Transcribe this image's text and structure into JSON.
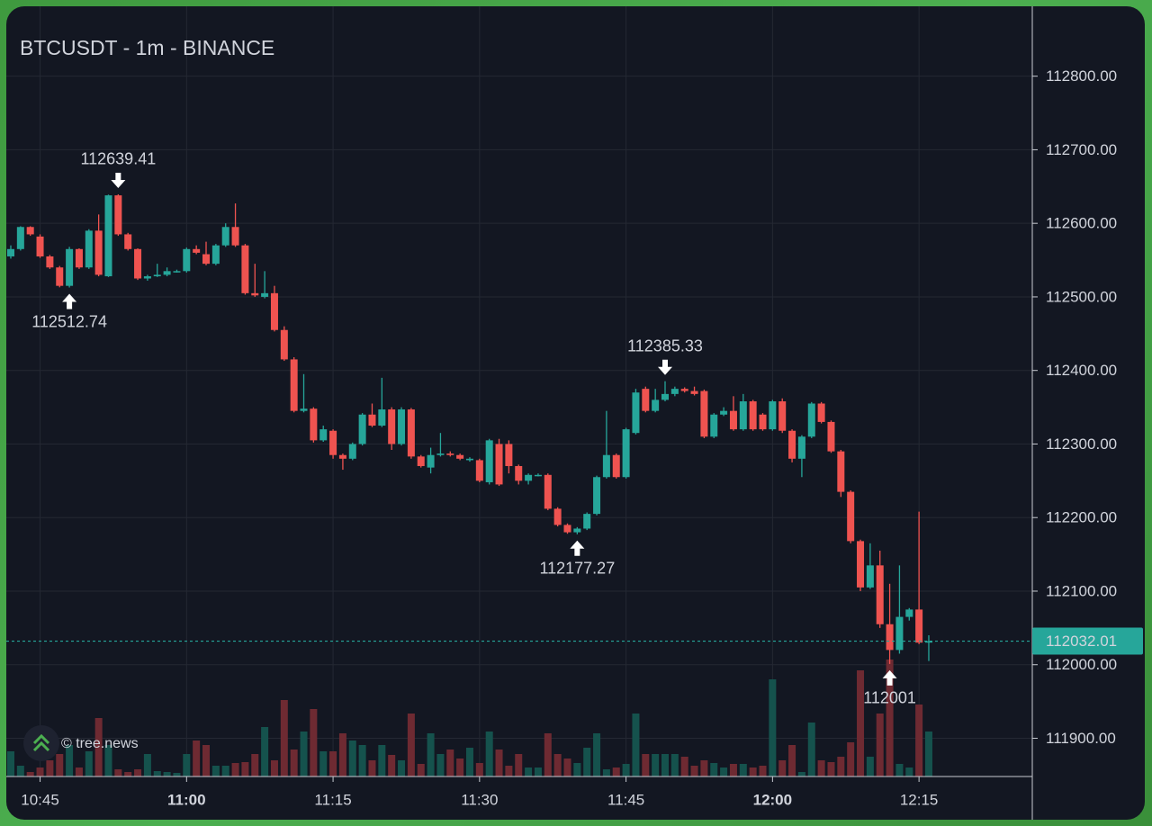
{
  "chart_data": {
    "type": "candlestick",
    "title": "BTCUSDT - 1m - BINANCE",
    "watermark": "© tree.news",
    "up_color": "#26a69a",
    "down_color": "#ef5350",
    "volume_up_color": "#15524d",
    "volume_down_color": "#6e2a32",
    "open": [
      112555,
      112565,
      112595,
      112582,
      112555,
      112540,
      112515,
      112565,
      112540,
      112590,
      112528,
      112638,
      112585,
      112565,
      112525,
      112528,
      112530,
      112535,
      112535,
      112565,
      112558,
      112545,
      112570,
      112595,
      112570,
      112505,
      112500,
      112505,
      112455,
      112415,
      112345,
      112348,
      112305,
      112318,
      112285,
      112280,
      112300,
      112340,
      112325,
      112347,
      112300,
      112347,
      112283,
      112268,
      112285,
      112287,
      112285,
      112278,
      112278,
      112248,
      112300,
      112300,
      112270,
      112250,
      112258,
      112258,
      112212,
      112190,
      112180,
      112185,
      112205,
      112255,
      112285,
      112255,
      112315,
      112375,
      112345,
      112360,
      112368,
      112375,
      112372,
      112372,
      112310,
      112340,
      112345,
      112320,
      112358,
      112340,
      112320,
      112358,
      112318,
      112280,
      112310,
      112355,
      112330,
      112290,
      112235,
      112168,
      112105,
      112135,
      112055,
      112020,
      112065,
      112075,
      112030
    ],
    "high": [
      112570,
      112596,
      112596,
      112585,
      112557,
      112542,
      112568,
      112566,
      112592,
      112612,
      112639,
      112639.41,
      112587,
      112566,
      112530,
      112545,
      112540,
      112537,
      112567,
      112570,
      112575,
      112572,
      112600,
      112627,
      112572,
      112545,
      112535,
      112515,
      112460,
      112418,
      112395,
      112350,
      112325,
      112320,
      112287,
      112302,
      112342,
      112355,
      112390,
      112350,
      112350,
      112349,
      112285,
      112295,
      112315,
      112290,
      112287,
      112282,
      112280,
      112307,
      112307,
      112305,
      112272,
      112260,
      112260,
      112260,
      112214,
      112192,
      112187,
      112207,
      112257,
      112345,
      112287,
      112322,
      112375,
      112378,
      112375,
      112385.33,
      112378,
      112377,
      112378,
      112374,
      112342,
      112350,
      112365,
      112368,
      112360,
      112342,
      112360,
      112362,
      112320,
      112312,
      112357,
      112357,
      112332,
      112292,
      112237,
      112170,
      112165,
      112155,
      112110,
      112135,
      112077,
      112208,
      112040
    ],
    "low": [
      112552,
      112563,
      112583,
      112553,
      112538,
      112513,
      112512.74,
      112538,
      112538,
      112528,
      112527,
      112583,
      112563,
      112523,
      112522,
      112527,
      112528,
      112533,
      112533,
      112558,
      112543,
      112543,
      112568,
      112568,
      112503,
      112500,
      112498,
      112453,
      112413,
      112343,
      112343,
      112302,
      112303,
      112280,
      112265,
      112278,
      112298,
      112323,
      112323,
      112292,
      112298,
      112280,
      112268,
      112260,
      112283,
      112283,
      112278,
      112276,
      112248,
      112245,
      112243,
      112260,
      112245,
      112245,
      112256,
      112210,
      112188,
      112178,
      112177.27,
      112183,
      112203,
      112253,
      112253,
      112253,
      112313,
      112343,
      112343,
      112358,
      112365,
      112370,
      112366,
      112308,
      112308,
      112338,
      112318,
      112318,
      112318,
      112318,
      112318,
      112315,
      112275,
      112255,
      112308,
      112328,
      112288,
      112228,
      112165,
      112100,
      112103,
      112050,
      112001,
      112015,
      112060,
      112028,
      112005
    ],
    "close": [
      112565,
      112595,
      112585,
      112555,
      112540,
      112515,
      112565,
      112540,
      112590,
      112530,
      112638,
      112585,
      112565,
      112525,
      112528,
      112530,
      112535,
      112535,
      112565,
      112560,
      112545,
      112570,
      112595,
      112570,
      112505,
      112502,
      112505,
      112455,
      112415,
      112345,
      112348,
      112305,
      112320,
      112285,
      112280,
      112300,
      112340,
      112325,
      112347,
      112300,
      112347,
      112283,
      112270,
      112285,
      112287,
      112285,
      112280,
      112280,
      112250,
      112305,
      112245,
      112270,
      112250,
      112258,
      112258,
      112212,
      112190,
      112180,
      112185,
      112205,
      112255,
      112285,
      112255,
      112320,
      112370,
      112345,
      112360,
      112368,
      112375,
      112372,
      112368,
      112310,
      112340,
      112345,
      112320,
      112358,
      112320,
      112320,
      112358,
      112318,
      112280,
      112310,
      112355,
      112330,
      112290,
      112235,
      112168,
      112105,
      112135,
      112055,
      112020,
      112065,
      112075,
      112030,
      112032.01
    ],
    "volume": [
      28,
      12,
      5,
      10,
      18,
      25,
      35,
      10,
      28,
      65,
      35,
      8,
      5,
      8,
      25,
      6,
      5,
      4,
      25,
      40,
      35,
      12,
      12,
      15,
      16,
      25,
      55,
      18,
      85,
      30,
      50,
      75,
      28,
      28,
      48,
      40,
      35,
      18,
      35,
      24,
      18,
      70,
      14,
      48,
      25,
      30,
      20,
      32,
      15,
      50,
      30,
      12,
      25,
      10,
      10,
      48,
      25,
      20,
      15,
      32,
      48,
      8,
      10,
      14,
      70,
      25,
      25,
      25,
      25,
      22,
      12,
      18,
      15,
      10,
      14,
      14,
      10,
      12,
      108,
      18,
      35,
      5,
      60,
      18,
      16,
      22,
      38,
      118,
      22,
      70,
      130,
      14,
      10,
      80,
      50
    ],
    "markers": [
      {
        "index": 11,
        "at": "high"
      },
      {
        "index": 6,
        "at": "low"
      },
      {
        "index": 67,
        "at": "high"
      },
      {
        "index": 58,
        "at": "low"
      },
      {
        "index": 90,
        "at": "low"
      }
    ],
    "ylim": [
      111848,
      112895
    ],
    "yticks": [
      {
        "value": 111900,
        "label": "111900.00"
      },
      {
        "value": 112000,
        "label": "112000.00"
      },
      {
        "value": 112100,
        "label": "112100.00"
      },
      {
        "value": 112200,
        "label": "112200.00"
      },
      {
        "value": 112300,
        "label": "112300.00"
      },
      {
        "value": 112400,
        "label": "112400.00"
      },
      {
        "value": 112500,
        "label": "112500.00"
      },
      {
        "value": 112600,
        "label": "112600.00"
      },
      {
        "value": 112700,
        "label": "112700.00"
      },
      {
        "value": 112800,
        "label": "112800.00"
      }
    ],
    "xlim": [
      -0.46,
      104.6
    ],
    "xticks": [
      {
        "value": 3,
        "label": "10:45"
      },
      {
        "value": 18,
        "label": "11:00"
      },
      {
        "value": 33,
        "label": "11:15"
      },
      {
        "value": 48,
        "label": "11:30"
      },
      {
        "value": 63,
        "label": "11:45"
      },
      {
        "value": 78,
        "label": "12:00"
      },
      {
        "value": 93,
        "label": "12:15"
      }
    ],
    "grid": true
  }
}
